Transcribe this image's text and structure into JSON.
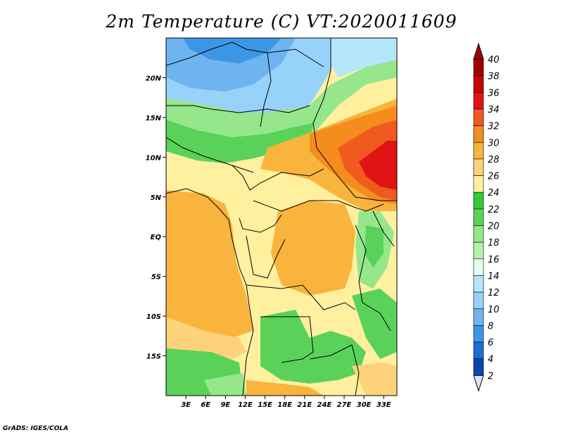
{
  "title": "2m Temperature (C) VT:2020011609",
  "footer": "GrADS: IGES/COLA",
  "map": {
    "lon_range": [
      0,
      35
    ],
    "lat_range": [
      -20,
      25
    ],
    "lon_ticks": [
      {
        "value": 3,
        "label": "3E"
      },
      {
        "value": 6,
        "label": "6E"
      },
      {
        "value": 9,
        "label": "9E"
      },
      {
        "value": 12,
        "label": "12E"
      },
      {
        "value": 15,
        "label": "15E"
      },
      {
        "value": 18,
        "label": "18E"
      },
      {
        "value": 21,
        "label": "21E"
      },
      {
        "value": 24,
        "label": "24E"
      },
      {
        "value": 27,
        "label": "27E"
      },
      {
        "value": 30,
        "label": "30E"
      },
      {
        "value": 33,
        "label": "33E"
      }
    ],
    "lat_ticks": [
      {
        "value": 20,
        "label": "20N"
      },
      {
        "value": 15,
        "label": "15N"
      },
      {
        "value": 10,
        "label": "10N"
      },
      {
        "value": 5,
        "label": "5N"
      },
      {
        "value": 0,
        "label": "EQ"
      },
      {
        "value": -5,
        "label": "5S"
      },
      {
        "value": -10,
        "label": "10S"
      },
      {
        "value": -15,
        "label": "15S"
      }
    ]
  },
  "legend": {
    "levels": [
      "40",
      "38",
      "36",
      "34",
      "32",
      "30",
      "28",
      "26",
      "24",
      "22",
      "20",
      "18",
      "16",
      "14",
      "12",
      "10",
      "8",
      "6",
      "4",
      "2"
    ],
    "colors": [
      "#a00000",
      "#c80000",
      "#e11414",
      "#f05a1e",
      "#f58c1e",
      "#f8b43c",
      "#fcd27a",
      "#fff0a0",
      "#36c836",
      "#5ad25a",
      "#96e68c",
      "#b4f0aa",
      "#e6fff0",
      "#b4e6fa",
      "#96d2fa",
      "#6eb4f0",
      "#3c96e6",
      "#1e6ed2",
      "#0a46aa",
      "#000064"
    ],
    "top_triangle_color": "#a00000",
    "bottom_triangle_color": "#e1e1ff"
  }
}
